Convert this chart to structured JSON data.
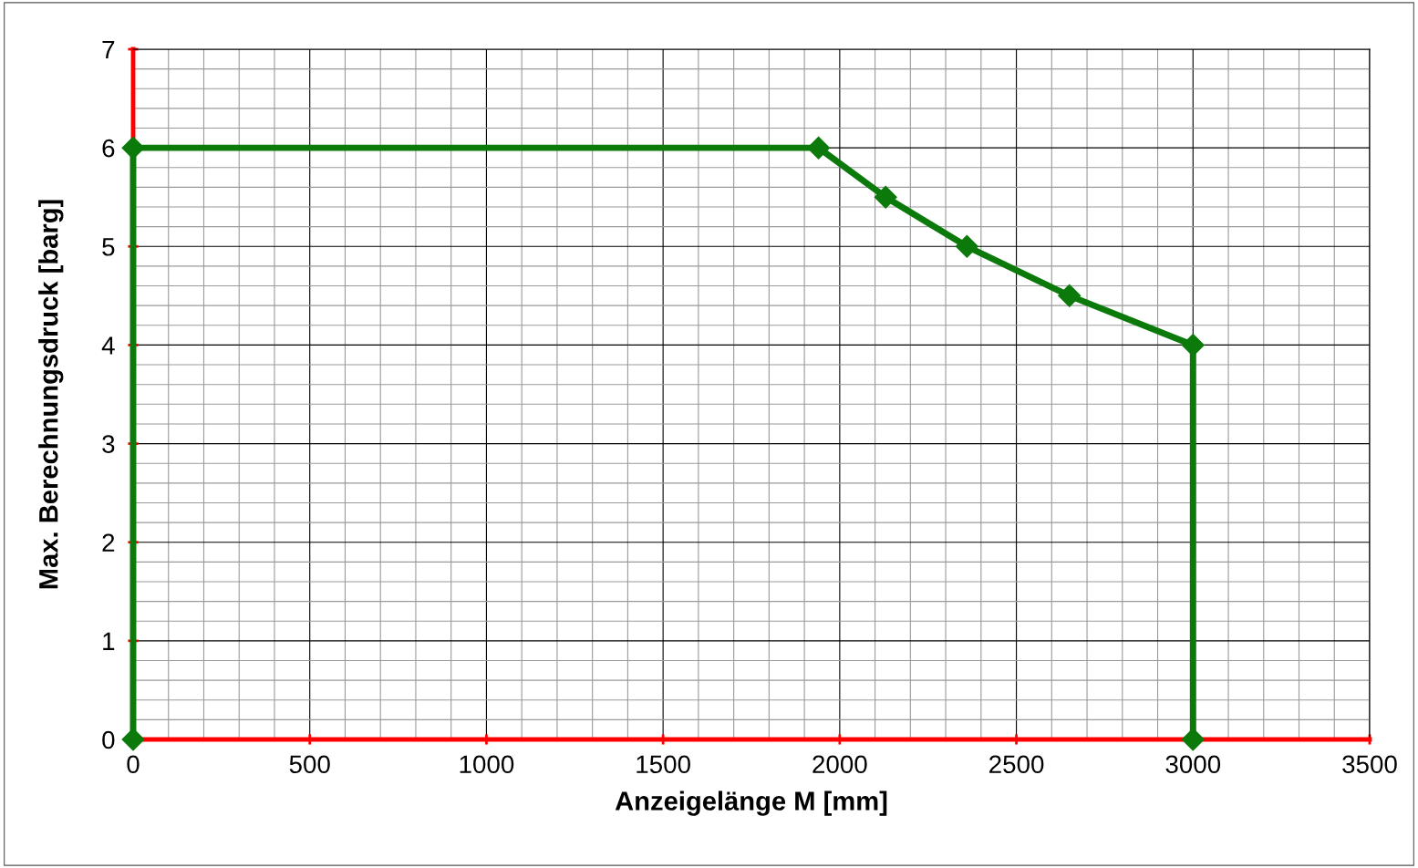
{
  "chart_data": {
    "type": "line",
    "xlabel": "Anzeigelänge M [mm]",
    "ylabel": "Max. Berechnungsdruck [barg]",
    "x": [
      0,
      0,
      1940,
      2130,
      2360,
      2650,
      3000,
      3000
    ],
    "series": [
      {
        "color": "#0b7a0b",
        "values": [
          0,
          6,
          6,
          5.5,
          5,
          4.5,
          4,
          0
        ]
      }
    ],
    "xlim": [
      0,
      3500
    ],
    "ylim": [
      0,
      7
    ],
    "xticks": [
      0,
      500,
      1000,
      1500,
      2000,
      2500,
      3000,
      3500
    ],
    "yticks": [
      0,
      1,
      2,
      3,
      4,
      5,
      6,
      7
    ],
    "grid": true,
    "marker": "diamond",
    "line_style": "solid"
  }
}
